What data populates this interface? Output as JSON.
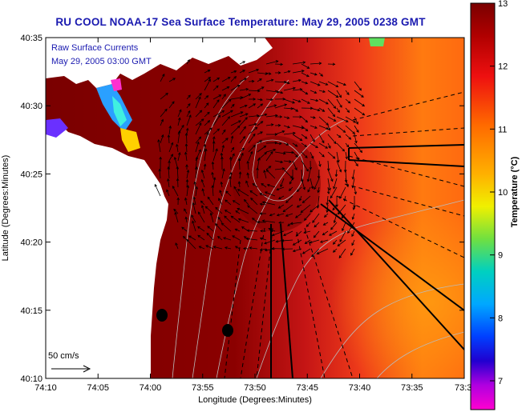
{
  "title": "RU COOL   NOAA-17  Sea Surface Temperature:  May 29, 2005 0238 GMT",
  "overlay": {
    "line1": "Raw Surface Currents",
    "line2": "May 29, 2005 03:00 GMT"
  },
  "scale": {
    "label": "50 cm/s"
  },
  "axes": {
    "xlabel": "Longitude (Degrees:Minutes)",
    "ylabel": "Latitude (Degrees:Minutes)",
    "xticks": [
      "74:10",
      "74:05",
      "74:00",
      "73:55",
      "73:50",
      "73:45",
      "73:40",
      "73:35",
      "73:3"
    ],
    "yticks": [
      "40:35",
      "40:30",
      "40:25",
      "40:20",
      "40:15",
      "40:10"
    ]
  },
  "colorbar": {
    "label": "Temperature (°C)",
    "ticks": [
      "13",
      "12",
      "11",
      "10",
      "9",
      "8",
      "7"
    ]
  },
  "colors": {
    "title": "#1a1ab0",
    "land": "#ffffff",
    "sst_hot": "#8b0000",
    "sst_warm": "#e2261a",
    "sst_mid": "#ff8c00"
  }
}
